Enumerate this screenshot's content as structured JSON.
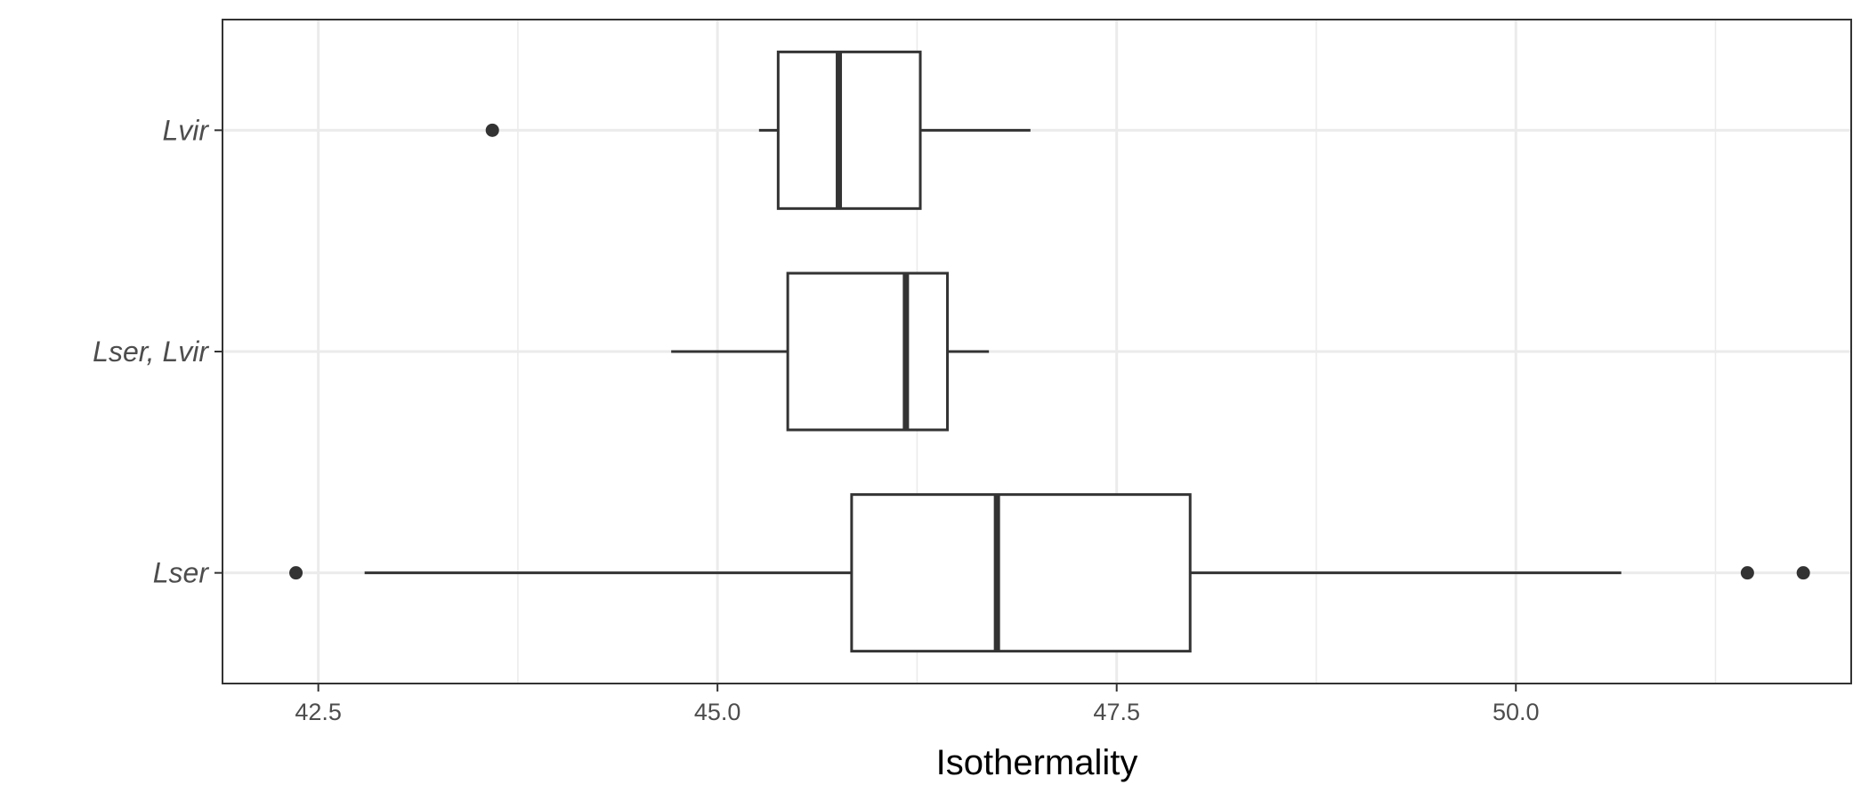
{
  "chart_data": {
    "type": "boxplot",
    "orientation": "horizontal",
    "title": "",
    "xlabel": "Isothermality",
    "ylabel": "",
    "xlim": [
      41.9,
      52.1
    ],
    "x_ticks": [
      42.5,
      45.0,
      47.5,
      50.0
    ],
    "x_tick_labels": [
      "42.5",
      "45.0",
      "47.5",
      "50.0"
    ],
    "x_minor_grid": [
      43.75,
      46.25,
      48.75,
      51.25
    ],
    "grid": true,
    "categories": [
      "Lvir",
      "Lser, Lvir",
      "Lser"
    ],
    "boxes": [
      {
        "category": "Lvir",
        "whisker_low": 45.26,
        "q1": 45.38,
        "median": 45.76,
        "q3": 46.27,
        "whisker_high": 46.96,
        "outliers": [
          43.59
        ]
      },
      {
        "category": "Lser, Lvir",
        "whisker_low": 44.71,
        "q1": 45.44,
        "median": 46.18,
        "q3": 46.44,
        "whisker_high": 46.7,
        "outliers": []
      },
      {
        "category": "Lser",
        "whisker_low": 42.79,
        "q1": 45.84,
        "median": 46.75,
        "q3": 47.96,
        "whisker_high": 50.66,
        "outliers": [
          42.36,
          51.45,
          51.8
        ]
      }
    ],
    "colors": {
      "box_stroke": "#333333",
      "box_fill": "#ffffff",
      "grid": "#ebebeb",
      "panel_border": "#333333",
      "outlier": "#333333"
    }
  }
}
